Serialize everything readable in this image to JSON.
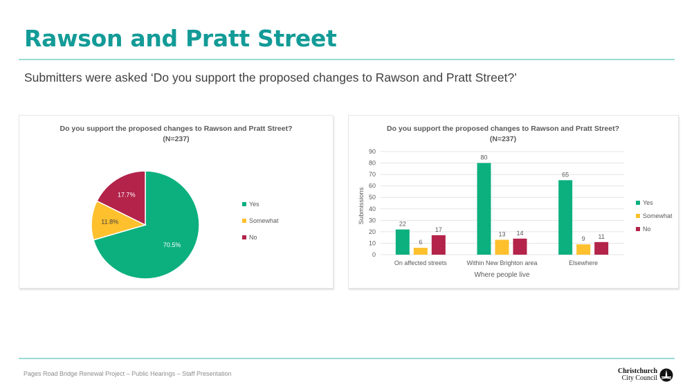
{
  "slide": {
    "title": "Rawson and Pratt Street",
    "subtitle": "Submitters were asked ‘Do you support the proposed changes to Rawson and Pratt Street?’",
    "footer": "Pages Road Bridge Renewal Project – Public Hearings – Staff Presentation",
    "logo": {
      "line1": "Christchurch",
      "line2": "City Council",
      "icon": "cathedral-logo-icon"
    }
  },
  "colors": {
    "yes": "#0cb07f",
    "somewhat": "#fec02d",
    "no": "#b3234a",
    "accent": "#139b97",
    "rule": "#9adbd3"
  },
  "chart_data": [
    {
      "type": "pie",
      "title": "Do you support the proposed changes to Rawson and Pratt Street?",
      "subtitle": "(N=237)",
      "categories": [
        "Yes",
        "Somewhat",
        "No"
      ],
      "values": [
        70.5,
        11.8,
        17.7
      ],
      "labels": [
        "70.5%",
        "11.8%",
        "17.7%"
      ],
      "legend": [
        "Yes",
        "Somewhat",
        "No"
      ],
      "legend_position": "right"
    },
    {
      "type": "bar",
      "title": "Do you support the proposed changes to Rawson and Pratt Street?",
      "subtitle": "(N=237)",
      "categories": [
        "On affected streets",
        "Within New Brighton area",
        "Elsewhere"
      ],
      "series": [
        {
          "name": "Yes",
          "values": [
            22,
            80,
            65
          ]
        },
        {
          "name": "Somewhat",
          "values": [
            6,
            13,
            9
          ]
        },
        {
          "name": "No",
          "values": [
            17,
            14,
            11
          ]
        }
      ],
      "xlabel": "Where people live",
      "ylabel": "Submissions",
      "ylim": [
        0,
        90
      ],
      "yticks": [
        "0",
        "10",
        "20",
        "30",
        "40",
        "50",
        "60",
        "70",
        "80",
        "90"
      ],
      "grid": true,
      "legend": [
        "Yes",
        "Somewhat",
        "No"
      ],
      "legend_position": "right"
    }
  ]
}
